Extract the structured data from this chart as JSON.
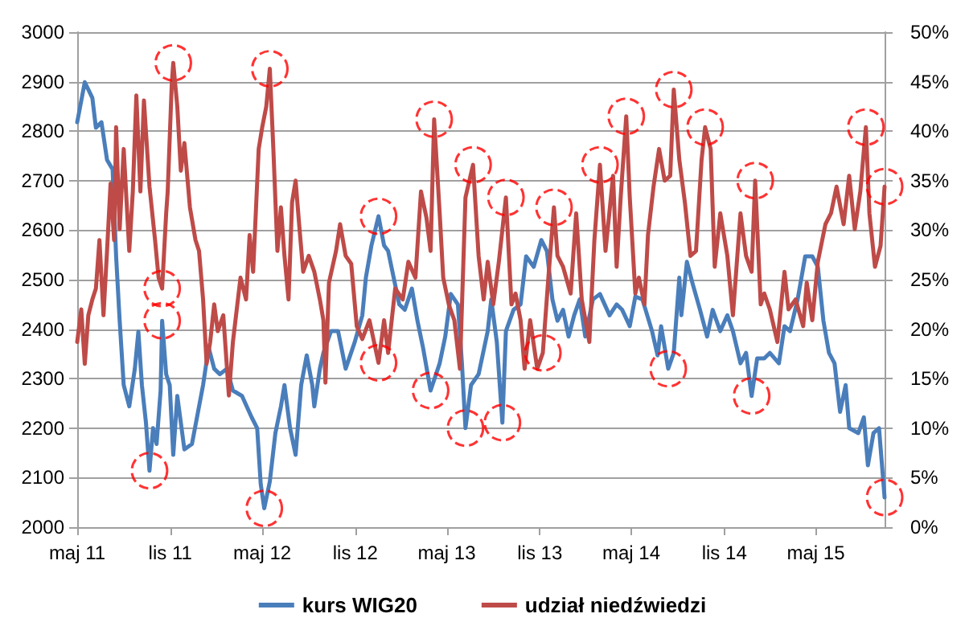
{
  "chart_data": {
    "type": "line",
    "marker": "none",
    "line_style": "solid",
    "grid": "y",
    "legend": "bottom",
    "xlim": [
      "2011-05-01",
      "2015-09-14"
    ],
    "xticks": [
      {
        "value": "2011-05",
        "label": "maj 11"
      },
      {
        "value": "2011-11",
        "label": "lis 11"
      },
      {
        "value": "2012-05",
        "label": "maj 12"
      },
      {
        "value": "2012-11",
        "label": "lis 12"
      },
      {
        "value": "2013-05",
        "label": "maj 13"
      },
      {
        "value": "2013-11",
        "label": "lis 13"
      },
      {
        "value": "2014-05",
        "label": "maj 14"
      },
      {
        "value": "2014-11",
        "label": "lis 14"
      },
      {
        "value": "2015-05",
        "label": "maj 15"
      }
    ],
    "ylim": [
      2000,
      3000
    ],
    "yticks": [
      2000,
      2100,
      2200,
      2300,
      2400,
      2500,
      2600,
      2700,
      2800,
      2900,
      3000
    ],
    "y2lim": [
      0,
      50
    ],
    "y2ticks": [
      {
        "value": 0,
        "label": "0%"
      },
      {
        "value": 5,
        "label": "5%"
      },
      {
        "value": 10,
        "label": "10%"
      },
      {
        "value": 15,
        "label": "15%"
      },
      {
        "value": 20,
        "label": "20%"
      },
      {
        "value": 25,
        "label": "25%"
      },
      {
        "value": 30,
        "label": "30%"
      },
      {
        "value": 35,
        "label": "35%"
      },
      {
        "value": 40,
        "label": "40%"
      },
      {
        "value": 45,
        "label": "45%"
      },
      {
        "value": 50,
        "label": "50%"
      }
    ],
    "series": [
      {
        "name": "kurs WIG20",
        "color": "#4a7ebb",
        "x": [
          "2011-05-01",
          "2011-05-16",
          "2011-05-31",
          "2011-06-07",
          "2011-06-18",
          "2011-06-29",
          "2011-07-10",
          "2011-07-17",
          "2011-07-24",
          "2011-08-01",
          "2011-08-12",
          "2011-08-23",
          "2011-08-30",
          "2011-09-06",
          "2011-09-14",
          "2011-09-21",
          "2011-09-28",
          "2011-10-05",
          "2011-10-13",
          "2011-10-16",
          "2011-10-24",
          "2011-10-31",
          "2011-11-07",
          "2011-11-15",
          "2011-11-29",
          "2011-12-14",
          "2012-01-05",
          "2012-01-16",
          "2012-01-27",
          "2012-02-07",
          "2012-02-21",
          "2012-03-04",
          "2012-03-22",
          "2012-04-10",
          "2012-04-21",
          "2012-04-28",
          "2012-05-05",
          "2012-05-16",
          "2012-05-27",
          "2012-06-07",
          "2012-06-14",
          "2012-06-25",
          "2012-07-06",
          "2012-07-17",
          "2012-07-28",
          "2012-08-08",
          "2012-08-12",
          "2012-08-23",
          "2012-08-30",
          "2012-09-14",
          "2012-09-28",
          "2012-10-13",
          "2012-10-31",
          "2012-11-15",
          "2012-11-22",
          "2012-12-03",
          "2012-12-17",
          "2012-12-28",
          "2013-01-05",
          "2013-01-16",
          "2013-01-27",
          "2013-02-07",
          "2013-02-21",
          "2013-03-04",
          "2013-03-15",
          "2013-03-30",
          "2013-04-17",
          "2013-04-28",
          "2013-05-09",
          "2013-05-23",
          "2013-05-31",
          "2013-06-07",
          "2013-06-18",
          "2013-07-03",
          "2013-07-21",
          "2013-07-28",
          "2013-08-08",
          "2013-08-19",
          "2013-08-26",
          "2013-09-10",
          "2013-09-24",
          "2013-10-05",
          "2013-10-20",
          "2013-11-04",
          "2013-11-15",
          "2013-11-26",
          "2013-12-06",
          "2013-12-17",
          "2013-12-28",
          "2014-01-08",
          "2014-01-19",
          "2014-01-30",
          "2014-02-14",
          "2014-02-28",
          "2014-03-19",
          "2014-04-02",
          "2014-04-13",
          "2014-04-28",
          "2014-05-09",
          "2014-05-23",
          "2014-06-11",
          "2014-06-22",
          "2014-06-29",
          "2014-07-13",
          "2014-07-24",
          "2014-08-04",
          "2014-08-08",
          "2014-08-19",
          "2014-08-30",
          "2014-09-14",
          "2014-09-28",
          "2014-10-09",
          "2014-10-24",
          "2014-11-07",
          "2014-11-18",
          "2014-12-03",
          "2014-12-14",
          "2014-12-25",
          "2015-01-05",
          "2015-01-19",
          "2015-01-30",
          "2015-02-17",
          "2015-02-28",
          "2015-03-11",
          "2015-03-26",
          "2015-04-10",
          "2015-04-24",
          "2015-05-05",
          "2015-05-16",
          "2015-05-27",
          "2015-06-07",
          "2015-06-18",
          "2015-06-29",
          "2015-07-06",
          "2015-07-24",
          "2015-08-04",
          "2015-08-12",
          "2015-08-23",
          "2015-09-03",
          "2015-09-14"
        ],
        "values": [
          2818,
          2899,
          2867,
          2807,
          2818,
          2742,
          2723,
          2547,
          2417,
          2287,
          2244,
          2320,
          2395,
          2287,
          2211,
          2114,
          2200,
          2168,
          2276,
          2417,
          2309,
          2287,
          2146,
          2265,
          2157,
          2168,
          2287,
          2363,
          2320,
          2309,
          2320,
          2276,
          2265,
          2222,
          2200,
          2087,
          2038,
          2092,
          2190,
          2244,
          2287,
          2200,
          2146,
          2287,
          2347,
          2287,
          2244,
          2320,
          2352,
          2396,
          2396,
          2320,
          2374,
          2428,
          2504,
          2569,
          2628,
          2569,
          2558,
          2504,
          2450,
          2439,
          2482,
          2417,
          2363,
          2276,
          2331,
          2385,
          2471,
          2450,
          2331,
          2200,
          2287,
          2309,
          2396,
          2460,
          2374,
          2211,
          2396,
          2439,
          2450,
          2547,
          2526,
          2580,
          2558,
          2460,
          2417,
          2439,
          2385,
          2428,
          2460,
          2385,
          2460,
          2471,
          2428,
          2450,
          2439,
          2406,
          2466,
          2460,
          2396,
          2347,
          2406,
          2320,
          2352,
          2504,
          2428,
          2536,
          2493,
          2439,
          2385,
          2439,
          2396,
          2428,
          2396,
          2331,
          2352,
          2265,
          2341,
          2341,
          2352,
          2331,
          2406,
          2396,
          2460,
          2547,
          2547,
          2526,
          2417,
          2352,
          2331,
          2233,
          2287,
          2200,
          2190,
          2222,
          2125,
          2190,
          2200,
          2060
        ]
      },
      {
        "name": "udział niedźwiedzi",
        "color": "#be4b48",
        "axis": "y2",
        "x": [
          "2011-05-01",
          "2011-05-09",
          "2011-05-16",
          "2011-05-23",
          "2011-05-31",
          "2011-06-07",
          "2011-06-14",
          "2011-06-22",
          "2011-06-29",
          "2011-07-06",
          "2011-07-13",
          "2011-07-17",
          "2011-07-24",
          "2011-08-01",
          "2011-08-12",
          "2011-08-19",
          "2011-08-26",
          "2011-09-03",
          "2011-09-10",
          "2011-09-21",
          "2011-10-02",
          "2011-10-09",
          "2011-10-16",
          "2011-10-24",
          "2011-10-27",
          "2011-11-04",
          "2011-11-07",
          "2011-11-15",
          "2011-11-22",
          "2011-11-29",
          "2011-12-10",
          "2011-12-21",
          "2011-12-28",
          "2012-01-05",
          "2012-01-12",
          "2012-01-19",
          "2012-01-27",
          "2012-02-03",
          "2012-02-14",
          "2012-02-25",
          "2012-03-04",
          "2012-03-19",
          "2012-03-30",
          "2012-04-06",
          "2012-04-13",
          "2012-04-24",
          "2012-05-01",
          "2012-05-09",
          "2012-05-16",
          "2012-05-23",
          "2012-05-31",
          "2012-06-07",
          "2012-06-14",
          "2012-06-22",
          "2012-06-29",
          "2012-07-06",
          "2012-07-13",
          "2012-07-21",
          "2012-08-01",
          "2012-08-12",
          "2012-08-23",
          "2012-08-30",
          "2012-09-03",
          "2012-09-10",
          "2012-09-24",
          "2012-10-02",
          "2012-10-13",
          "2012-10-24",
          "2012-11-04",
          "2012-11-15",
          "2012-11-29",
          "2012-12-17",
          "2012-12-28",
          "2013-01-05",
          "2013-01-19",
          "2013-02-03",
          "2013-02-14",
          "2013-02-28",
          "2013-03-11",
          "2013-03-22",
          "2013-03-30",
          "2013-04-06",
          "2013-04-17",
          "2013-04-24",
          "2013-05-05",
          "2013-05-16",
          "2013-05-27",
          "2013-06-07",
          "2013-06-22",
          "2013-07-03",
          "2013-07-13",
          "2013-07-21",
          "2013-08-01",
          "2013-08-12",
          "2013-08-26",
          "2013-09-06",
          "2013-09-14",
          "2013-09-24",
          "2013-10-02",
          "2013-10-13",
          "2013-10-27",
          "2013-11-07",
          "2013-11-18",
          "2013-11-29",
          "2013-12-06",
          "2013-12-17",
          "2014-01-01",
          "2014-01-12",
          "2014-01-23",
          "2014-02-07",
          "2014-02-17",
          "2014-02-28",
          "2014-03-11",
          "2014-03-26",
          "2014-04-02",
          "2014-04-10",
          "2014-04-21",
          "2014-04-28",
          "2014-05-09",
          "2014-05-16",
          "2014-05-27",
          "2014-06-03",
          "2014-06-14",
          "2014-06-25",
          "2014-07-06",
          "2014-07-17",
          "2014-07-24",
          "2014-08-04",
          "2014-08-15",
          "2014-08-26",
          "2014-09-06",
          "2014-09-17",
          "2014-09-24",
          "2014-10-05",
          "2014-10-13",
          "2014-10-24",
          "2014-11-07",
          "2014-11-18",
          "2014-12-03",
          "2014-12-14",
          "2014-12-25",
          "2015-01-01",
          "2015-01-12",
          "2015-01-19",
          "2015-01-30",
          "2015-02-14",
          "2015-02-28",
          "2015-03-08",
          "2015-03-22",
          "2015-04-06",
          "2015-04-13",
          "2015-04-24",
          "2015-05-05",
          "2015-05-20",
          "2015-05-31",
          "2015-06-11",
          "2015-06-25",
          "2015-07-06",
          "2015-07-17",
          "2015-07-28",
          "2015-08-08",
          "2015-08-15",
          "2015-08-26",
          "2015-09-06",
          "2015-09-14"
        ],
        "values": [
          18.7,
          22.0,
          16.5,
          21.4,
          23.0,
          24.1,
          29.0,
          21.4,
          27.9,
          34.7,
          29.0,
          40.4,
          30.1,
          38.2,
          27.9,
          33.9,
          43.6,
          33.9,
          43.1,
          34.4,
          29.0,
          25.2,
          24.1,
          31.7,
          33.9,
          44.7,
          46.9,
          42.5,
          36.0,
          38.8,
          32.3,
          29.0,
          27.9,
          23.0,
          16.5,
          18.7,
          22.5,
          19.8,
          21.4,
          13.3,
          18.7,
          25.2,
          23.0,
          29.5,
          25.8,
          38.2,
          40.4,
          42.5,
          46.3,
          38.2,
          27.9,
          32.3,
          27.4,
          23.0,
          32.8,
          35.0,
          30.6,
          25.8,
          27.4,
          25.8,
          23.0,
          20.9,
          14.6,
          24.7,
          27.9,
          30.6,
          27.4,
          26.6,
          20.3,
          19.0,
          20.9,
          16.6,
          20.9,
          17.6,
          24.1,
          23.0,
          26.8,
          25.2,
          33.9,
          31.2,
          27.9,
          41.2,
          31.7,
          25.2,
          22.5,
          20.9,
          16.0,
          33.3,
          36.6,
          27.4,
          23.0,
          26.8,
          22.5,
          26.8,
          33.3,
          22.5,
          23.6,
          20.9,
          16.0,
          20.9,
          16.0,
          17.6,
          25.2,
          32.3,
          27.4,
          26.3,
          23.6,
          31.7,
          23.0,
          18.7,
          29.0,
          36.6,
          27.9,
          35.5,
          26.3,
          33.3,
          41.5,
          33.3,
          23.6,
          25.2,
          22.5,
          29.5,
          34.4,
          38.2,
          35.0,
          35.5,
          44.2,
          37.1,
          32.8,
          27.4,
          27.9,
          37.1,
          40.4,
          38.2,
          26.3,
          31.7,
          27.4,
          21.4,
          31.7,
          27.4,
          25.8,
          35.0,
          22.5,
          23.6,
          22.0,
          18.7,
          25.8,
          22.0,
          23.0,
          20.3,
          24.7,
          20.9,
          26.8,
          30.6,
          31.7,
          34.4,
          30.6,
          35.5,
          30.1,
          33.9,
          40.4,
          31.7,
          26.3,
          28.4,
          34.4
        ]
      },
      {
        "type": "scatter",
        "color": "#ff0000",
        "marker": "circle",
        "line_style": "dashed",
        "x": [
          "2011-09-21",
          "2011-10-16",
          "2012-05-05",
          "2012-12-17",
          "2013-03-30",
          "2013-06-07",
          "2013-08-19",
          "2014-07-13",
          "2014-12-25",
          "2015-09-14"
        ],
        "values": [
          2114,
          2417,
          2038,
          2628,
          2276,
          2200,
          2211,
          2320,
          2265,
          2060
        ]
      },
      {
        "type": "scatter",
        "color": "#ff0000",
        "marker": "circle",
        "line_style": "dashed",
        "axis": "y2",
        "x": [
          "2011-10-16",
          "2011-11-07",
          "2012-05-16",
          "2012-12-17",
          "2013-04-06",
          "2013-06-22",
          "2013-08-26",
          "2013-11-07",
          "2013-11-29",
          "2014-02-28",
          "2014-04-21",
          "2014-07-24",
          "2014-09-24",
          "2015-01-01",
          "2015-08-08",
          "2015-09-14"
        ],
        "values": [
          24.1,
          46.9,
          46.3,
          16.6,
          41.2,
          36.6,
          33.3,
          17.6,
          32.3,
          36.6,
          41.5,
          44.2,
          40.4,
          35.0,
          40.4,
          34.4
        ]
      }
    ]
  }
}
